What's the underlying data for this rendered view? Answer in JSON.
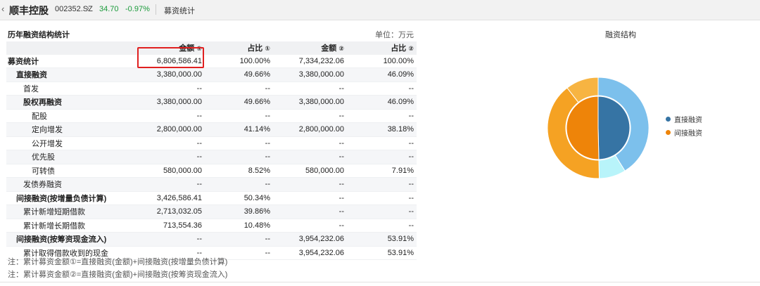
{
  "header": {
    "company": "顺丰控股",
    "code": "002352.SZ",
    "price": "34.70",
    "change": "-0.97%",
    "page": "募资统计",
    "price_color": "#1a9a3a"
  },
  "table": {
    "title": "历年融资结构统计",
    "unit": "单位：万元",
    "columns": [
      "",
      "金额",
      "占比",
      "金额",
      "占比"
    ],
    "column_marks": [
      "",
      "①",
      "①",
      "②",
      "②"
    ],
    "rows": [
      {
        "label": "募资统计",
        "level": 0,
        "bold": true,
        "amount1": "6,806,586.41",
        "ratio1": "100.00%",
        "amount2": "7,334,232.06",
        "ratio2": "100.00%"
      },
      {
        "label": "直接融资",
        "level": 1,
        "bold": true,
        "amount1": "3,380,000.00",
        "ratio1": "49.66%",
        "amount2": "3,380,000.00",
        "ratio2": "46.09%"
      },
      {
        "label": "首发",
        "level": 2,
        "bold": false,
        "amount1": "--",
        "ratio1": "--",
        "amount2": "--",
        "ratio2": "--"
      },
      {
        "label": "股权再融资",
        "level": 2,
        "bold": true,
        "amount1": "3,380,000.00",
        "ratio1": "49.66%",
        "amount2": "3,380,000.00",
        "ratio2": "46.09%"
      },
      {
        "label": "配股",
        "level": 3,
        "bold": false,
        "amount1": "--",
        "ratio1": "--",
        "amount2": "--",
        "ratio2": "--"
      },
      {
        "label": "定向增发",
        "level": 3,
        "bold": false,
        "amount1": "2,800,000.00",
        "ratio1": "41.14%",
        "amount2": "2,800,000.00",
        "ratio2": "38.18%"
      },
      {
        "label": "公开增发",
        "level": 3,
        "bold": false,
        "amount1": "--",
        "ratio1": "--",
        "amount2": "--",
        "ratio2": "--"
      },
      {
        "label": "优先股",
        "level": 3,
        "bold": false,
        "amount1": "--",
        "ratio1": "--",
        "amount2": "--",
        "ratio2": "--"
      },
      {
        "label": "可转债",
        "level": 3,
        "bold": false,
        "amount1": "580,000.00",
        "ratio1": "8.52%",
        "amount2": "580,000.00",
        "ratio2": "7.91%"
      },
      {
        "label": "发债券融资",
        "level": 2,
        "bold": false,
        "amount1": "--",
        "ratio1": "--",
        "amount2": "--",
        "ratio2": "--"
      },
      {
        "label": "间接融资(按增量负债计算)",
        "level": 1,
        "bold": true,
        "amount1": "3,426,586.41",
        "ratio1": "50.34%",
        "amount2": "--",
        "ratio2": "--"
      },
      {
        "label": "累计新增短期借款",
        "level": 2,
        "bold": false,
        "amount1": "2,713,032.05",
        "ratio1": "39.86%",
        "amount2": "--",
        "ratio2": "--"
      },
      {
        "label": "累计新增长期借款",
        "level": 2,
        "bold": false,
        "amount1": "713,554.36",
        "ratio1": "10.48%",
        "amount2": "--",
        "ratio2": "--"
      },
      {
        "label": "间接融资(按筹资现金流入)",
        "level": 1,
        "bold": true,
        "amount1": "--",
        "ratio1": "--",
        "amount2": "3,954,232.06",
        "ratio2": "53.91%"
      },
      {
        "label": "累计取得借款收到的现金",
        "level": 2,
        "bold": false,
        "amount1": "--",
        "ratio1": "--",
        "amount2": "3,954,232.06",
        "ratio2": "53.91%"
      }
    ]
  },
  "notes": [
    "注：累计募资金额①=直接融资(金额)+间接融资(按增量负债计算)",
    "注：累计募资金额②=直接融资(金额)+间接融资(按筹资现金流入)"
  ],
  "chart_data": {
    "type": "pie",
    "title": "融资结构",
    "legend_position": "right",
    "inner_ring": {
      "categories": [
        "直接融资",
        "间接融资"
      ],
      "values": [
        49.66,
        50.34
      ],
      "colors": [
        "#3674a4",
        "#ee8409"
      ]
    },
    "outer_ring": {
      "categories": [
        "定向增发",
        "可转债",
        "累计新增短期借款",
        "累计新增长期借款"
      ],
      "values": [
        41.14,
        8.52,
        39.86,
        10.48
      ],
      "colors": [
        "#7cc0ec",
        "#b8f4fa",
        "#f5a223",
        "#f7b442"
      ]
    },
    "legend": [
      {
        "label": "直接融资",
        "color": "#3674a4"
      },
      {
        "label": "间接融资",
        "color": "#ee8409"
      }
    ]
  }
}
